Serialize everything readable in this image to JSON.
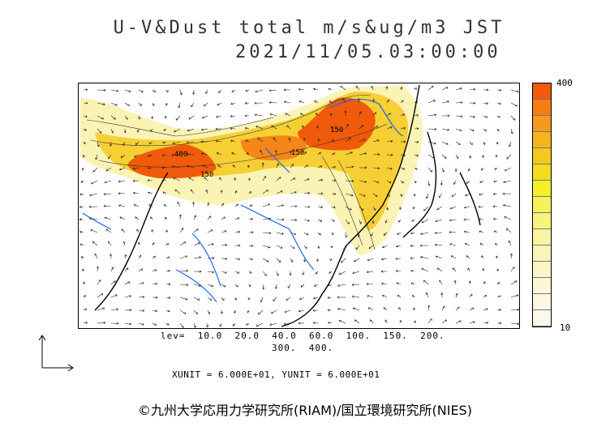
{
  "header": {
    "title": "U-V&Dust total m/s&ug/m3 JST",
    "datetime": "2021/11/05.03:00:00"
  },
  "colorbar": {
    "max_label": "400",
    "min_label": "10",
    "colors_top_to_bottom": [
      "#f05a0a",
      "#f67d14",
      "#f59a1e",
      "#f5b41e",
      "#f5c81e",
      "#f5dc1e",
      "#f5f028",
      "#f6f25a",
      "#f7f47e",
      "#f8f59e",
      "#f9f5b8",
      "#faf6ca",
      "#fbf7d8",
      "#fcf8e2",
      "#fdf9ea"
    ]
  },
  "map": {
    "contour_labels": [
      "150",
      "150",
      "400",
      "150"
    ],
    "colors": {
      "land_line": "#000000",
      "river": "#1e64f0",
      "high": "#f05a0a",
      "mid": "#f5c81e",
      "low": "#faf3b4"
    }
  },
  "levels": {
    "line1": "lev=  10.0  20.0  40.0  60.0  100.  150.  200.",
    "line2": "300.  400."
  },
  "units": {
    "text": "XUNIT = 6.000E+01, YUNIT = 6.000E+01"
  },
  "footer": {
    "copyright": "©九州大学応用力学研究所(RIAM)/国立環境研究所(NIES)"
  }
}
